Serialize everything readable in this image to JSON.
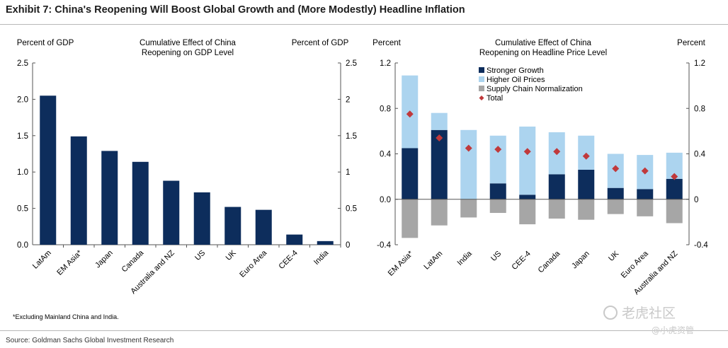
{
  "exhibit_title": "Exhibit 7: China's Reopening Will Boost Global Growth and (More Modestly) Headline Inflation",
  "source": "Source: Goldman Sachs Global Investment Research",
  "watermark": {
    "brand": "老虎社区",
    "handle": "@小虎资管"
  },
  "colors": {
    "navy": "#0d2d5c",
    "light_blue": "#acd4ef",
    "gray": "#a6a6a6",
    "total": "#c0393b"
  },
  "chart_data": [
    {
      "type": "bar",
      "title": "Cumulative Effect of China Reopening on GDP Level",
      "left_axis_label": "Percent of GDP",
      "right_axis_label": "Percent of GDP",
      "ylim": [
        0,
        2.5
      ],
      "left_ticks": [
        "2.5",
        "2.0",
        "1.5",
        "1.0",
        "0.5",
        "0.0"
      ],
      "right_ticks": [
        "2.5",
        "2",
        "1.5",
        "1",
        "0.5",
        "0"
      ],
      "tick_values": [
        2.5,
        2.0,
        1.5,
        1.0,
        0.5,
        0.0
      ],
      "categories": [
        "LatAm",
        "EM Asia*",
        "Japan",
        "Canada",
        "Australia and NZ",
        "US",
        "UK",
        "Euro Area",
        "CEE-4",
        "India"
      ],
      "values": [
        2.05,
        1.49,
        1.29,
        1.14,
        0.88,
        0.72,
        0.52,
        0.48,
        0.14,
        0.05
      ],
      "footnote": "*Excluding Mainland China and India."
    },
    {
      "type": "bar",
      "stacked": true,
      "title": "Cumulative Effect of China Reopening on Headline Price Level",
      "left_axis_label": "Percent",
      "right_axis_label": "Percent",
      "ylim": [
        -0.4,
        1.2
      ],
      "left_ticks": [
        "1.2",
        "0.8",
        "0.4",
        "0.0",
        "-0.4"
      ],
      "right_ticks": [
        "1.2",
        "0.8",
        "0.4",
        "0",
        "-0.4"
      ],
      "tick_values": [
        1.2,
        0.8,
        0.4,
        0.0,
        -0.4
      ],
      "categories": [
        "EM Asia*",
        "LatAm",
        "India",
        "US",
        "CEE-4",
        "Canada",
        "Japan",
        "UK",
        "Euro Area",
        "Australia and NZ"
      ],
      "series": [
        {
          "name": "Stronger Growth",
          "values": [
            0.45,
            0.61,
            0.0,
            0.14,
            0.04,
            0.22,
            0.26,
            0.1,
            0.09,
            0.18
          ]
        },
        {
          "name": "Higher Oil Prices",
          "values": [
            0.64,
            0.15,
            0.61,
            0.42,
            0.6,
            0.37,
            0.3,
            0.3,
            0.3,
            0.23
          ]
        },
        {
          "name": "Supply Chain Normalization",
          "values": [
            -0.34,
            -0.23,
            -0.16,
            -0.12,
            -0.22,
            -0.17,
            -0.18,
            -0.13,
            -0.15,
            -0.21
          ]
        }
      ],
      "total": {
        "name": "Total",
        "values": [
          0.75,
          0.54,
          0.45,
          0.44,
          0.42,
          0.42,
          0.38,
          0.27,
          0.25,
          0.2
        ]
      }
    }
  ]
}
